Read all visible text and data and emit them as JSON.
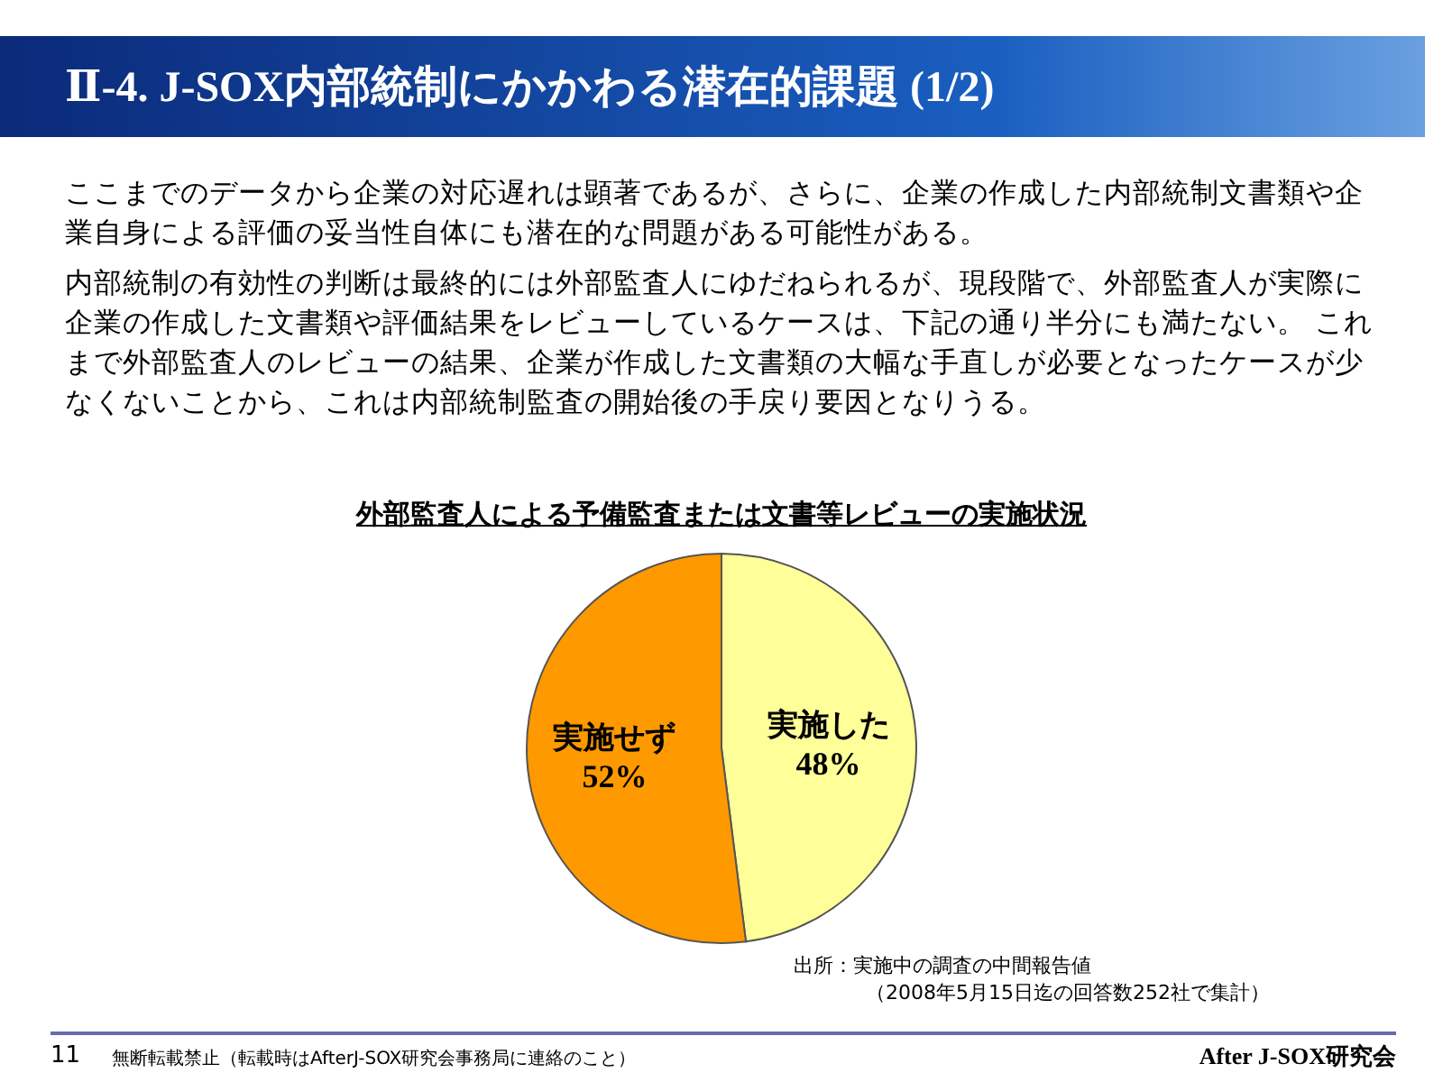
{
  "chart_data": {
    "type": "pie",
    "title": "Ⅱ-4. J-SOX内部統制にかかわる潜在的課題 (1/2)",
    "subtitle": "外部監査人による予備監査または文書等レビューの実施状況",
    "categories": [
      "実施した",
      "実施せず"
    ],
    "values": [
      48,
      52
    ],
    "colors": [
      "#ffff99",
      "#ff9900"
    ],
    "value_labels": [
      "48%",
      "52%"
    ],
    "legend": false,
    "annotations": [
      "ここまでのデータから企業の対応遅れは顕著であるが、さらに、企業の作成した内部統制文書類や企業自身による評価の妥当性自体にも潜在的な問題がある可能性がある。",
      "内部統制の有効性の判断は最終的には外部監査人にゆだねられるが、現段階で、外部監査人が実際に企業の作成した文書類や評価結果をレビューしているケースは、下記の通り半分にも満たない。 これまで外部監査人のレビューの結果、企業が作成した文書類の大幅な手直しが必要となったケースが少なくないことから、これは内部統制監査の開始後の手戻り要因となりうる。",
      "出所：実施中の調査の中間報告値",
      "（2008年5月15日迄の回答数252社で集計）",
      "11",
      "無断転載禁止（転載時はAfterJ-SOX研究会事務局に連絡のこと）",
      "After J-SOX研究会"
    ]
  }
}
